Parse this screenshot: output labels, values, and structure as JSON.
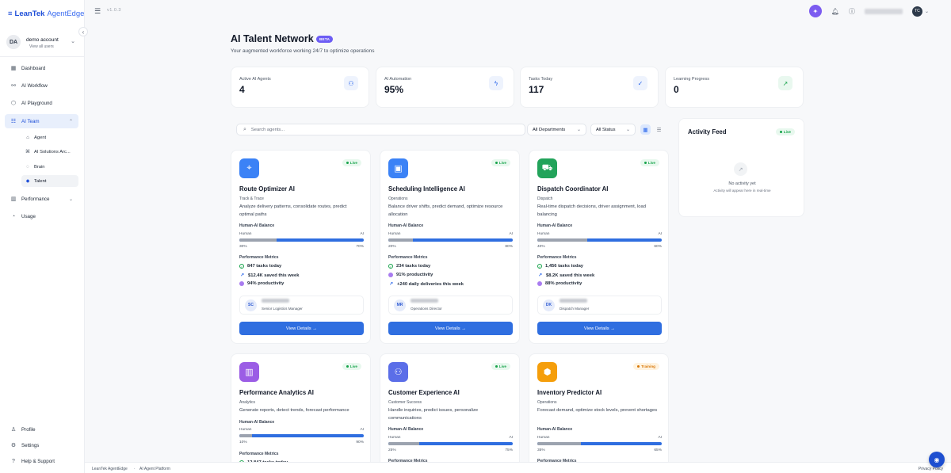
{
  "logo": {
    "brand": "LeanTek",
    "product": "AgentEdge"
  },
  "account": {
    "initials": "DA",
    "name": "demo account",
    "sub": "View all users"
  },
  "nav": {
    "dashboard": "Dashboard",
    "workflow": "AI Workflow",
    "playground": "AI Playground",
    "team": "AI Team",
    "agent": "Agent",
    "solutions": "AI Solutions Arc...",
    "brain": "Brain",
    "talent": "Talent",
    "performance": "Performance",
    "usage": "Usage",
    "profile": "Profile",
    "settings": "Settings",
    "help": "Help & Support"
  },
  "topbar": {
    "version": "v1.0.3",
    "user_initials": "TC"
  },
  "page": {
    "title": "AI Talent Network",
    "beta": "BETA",
    "subtitle": "Your augmented workforce working 24/7 to optimize operations"
  },
  "stats": [
    {
      "label": "Active AI Agents",
      "value": "4"
    },
    {
      "label": "AI Automation",
      "value": "95%"
    },
    {
      "label": "Tasks Today",
      "value": "117"
    },
    {
      "label": "Learning Progress",
      "value": "0"
    }
  ],
  "filters": {
    "search_placeholder": "Search agents...",
    "department": "All Departments",
    "status": "All Status"
  },
  "labels": {
    "balance": "Human-AI Balance",
    "human": "Human",
    "ai": "AI",
    "metrics": "Performance Metrics",
    "view_details": "View Details →"
  },
  "agents": [
    {
      "title": "Route Optimizer AI",
      "category": "Track & Trace",
      "description": "Analyze delivery patterns, consolidate routes, predict optimal paths",
      "status": "Live",
      "icon": "map-pin-icon",
      "color": "#3b82f6",
      "human": 30,
      "ai": 70,
      "human_pct": "30%",
      "ai_pct": "70%",
      "metrics": [
        "847 tasks today",
        "$12.4K saved this week",
        "94% productivity"
      ],
      "manager_initials": "SC",
      "manager_role": "Senior Logistics Manager"
    },
    {
      "title": "Scheduling Intelligence AI",
      "category": "Operations",
      "description": "Balance driver shifts, predict demand, optimize resource allocation",
      "status": "Live",
      "icon": "calendar-icon",
      "color": "#3b82f6",
      "human": 20,
      "ai": 80,
      "human_pct": "20%",
      "ai_pct": "80%",
      "metrics": [
        "234 tasks today",
        "91% productivity",
        "+240 daily deliveries this week"
      ],
      "manager_initials": "MR",
      "manager_role": "Operations Director"
    },
    {
      "title": "Dispatch Coordinator AI",
      "category": "Dispatch",
      "description": "Real-time dispatch decisions, driver assignment, load balancing",
      "status": "Live",
      "icon": "truck-icon",
      "color": "#22a35a",
      "human": 40,
      "ai": 60,
      "human_pct": "40%",
      "ai_pct": "60%",
      "metrics": [
        "1,456 tasks today",
        "$8.2K saved this week",
        "88% productivity"
      ],
      "manager_initials": "DK",
      "manager_role": "Dispatch Manager"
    },
    {
      "title": "Performance Analytics AI",
      "category": "Analytics",
      "description": "Generate reports, detect trends, forecast performance",
      "status": "Live",
      "icon": "bar-chart-icon",
      "color": "#9b5de5",
      "human": 10,
      "ai": 90,
      "human_pct": "10%",
      "ai_pct": "90%",
      "metrics": [
        "12,847 tasks today"
      ]
    },
    {
      "title": "Customer Experience AI",
      "category": "Customer Success",
      "description": "Handle inquiries, predict issues, personalize communications",
      "status": "Live",
      "icon": "users-icon",
      "color": "#5b6ee8",
      "human": 25,
      "ai": 75,
      "human_pct": "25%",
      "ai_pct": "75%",
      "metrics": []
    },
    {
      "title": "Inventory Predictor AI",
      "category": "Operations",
      "description": "Forecast demand, optimize stock levels, prevent shortages",
      "status": "Training",
      "icon": "box-icon",
      "color": "#f59e0b",
      "human": 35,
      "ai": 65,
      "human_pct": "35%",
      "ai_pct": "65%",
      "metrics": []
    }
  ],
  "feed": {
    "title": "Activity Feed",
    "status": "Live",
    "empty": "No activity yet",
    "empty_sub": "Activity will appear here in real-time"
  },
  "footer": {
    "brand": "LeanTek AgentEdge",
    "sep": "·",
    "platform": "AI Agent Platform",
    "privacy": "Privacy Policy"
  }
}
